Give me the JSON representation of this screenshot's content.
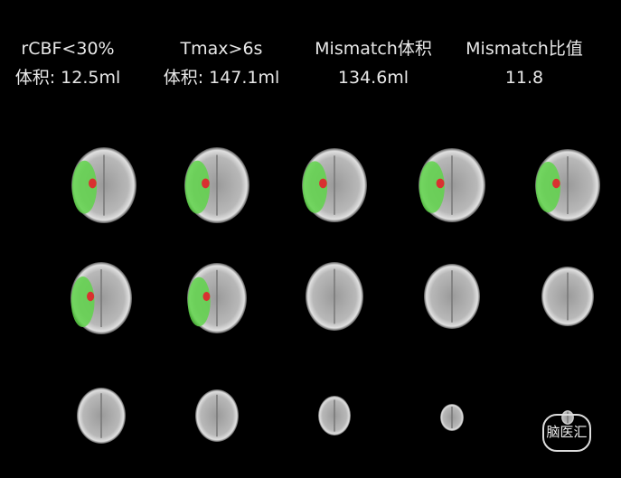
{
  "metrics": [
    {
      "label": "rCBF<30%",
      "value": "体积: 12.5ml"
    },
    {
      "label": "Tmax>6s",
      "value": "体积: 147.1ml"
    },
    {
      "label": "Mismatch体积",
      "value": "134.6ml"
    },
    {
      "label": "Mismatch比值",
      "value": "11.8"
    }
  ],
  "watermark": "脑医汇"
}
